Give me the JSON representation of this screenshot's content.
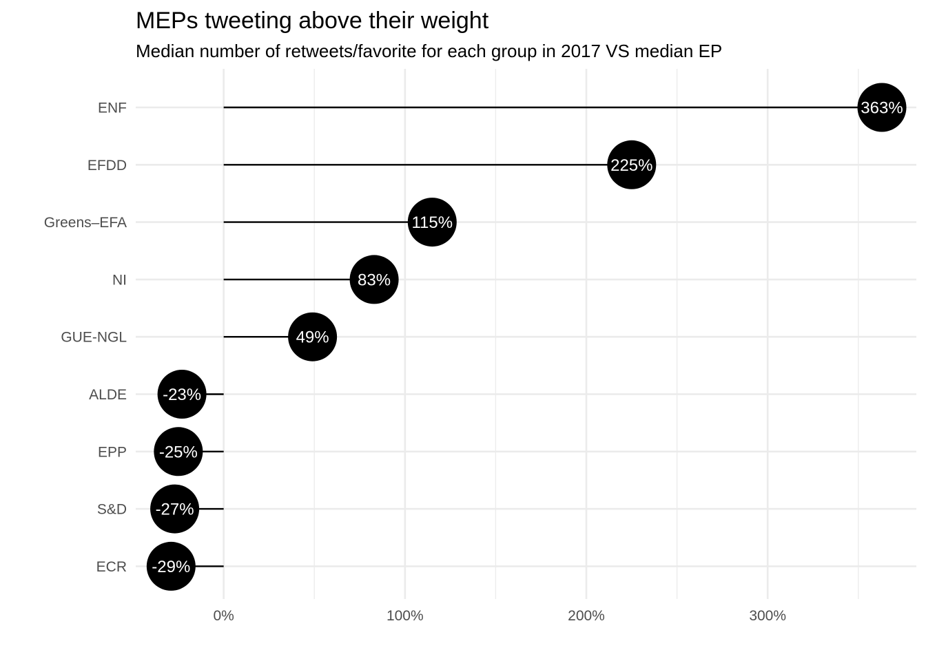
{
  "chart_data": {
    "type": "lollipop",
    "title": "MEPs tweeting above their weight",
    "subtitle": "Median number of retweets/favorite for each group in 2017 VS median EP",
    "xlabel": "",
    "ylabel": "",
    "categories": [
      "ENF",
      "EFDD",
      "Greens–EFA",
      "NI",
      "GUE-NGL",
      "ALDE",
      "EPP",
      "S&D",
      "ECR"
    ],
    "values": [
      363,
      225,
      115,
      83,
      49,
      -23,
      -25,
      -27,
      -29
    ],
    "value_labels": [
      "363%",
      "225%",
      "115%",
      "83%",
      "49%",
      "-23%",
      "-25%",
      "-27%",
      "-29%"
    ],
    "x_ticks": [
      0,
      100,
      200,
      300
    ],
    "x_tick_labels": [
      "0%",
      "100%",
      "200%",
      "300%"
    ],
    "xlim": [
      -48.5,
      382
    ],
    "grid": true,
    "legend": "none",
    "colors": {
      "point": "#000000",
      "segment": "#000000",
      "label": "#ffffff",
      "grid": "#ebebeb",
      "tick_text": "#4d4d4d"
    }
  }
}
